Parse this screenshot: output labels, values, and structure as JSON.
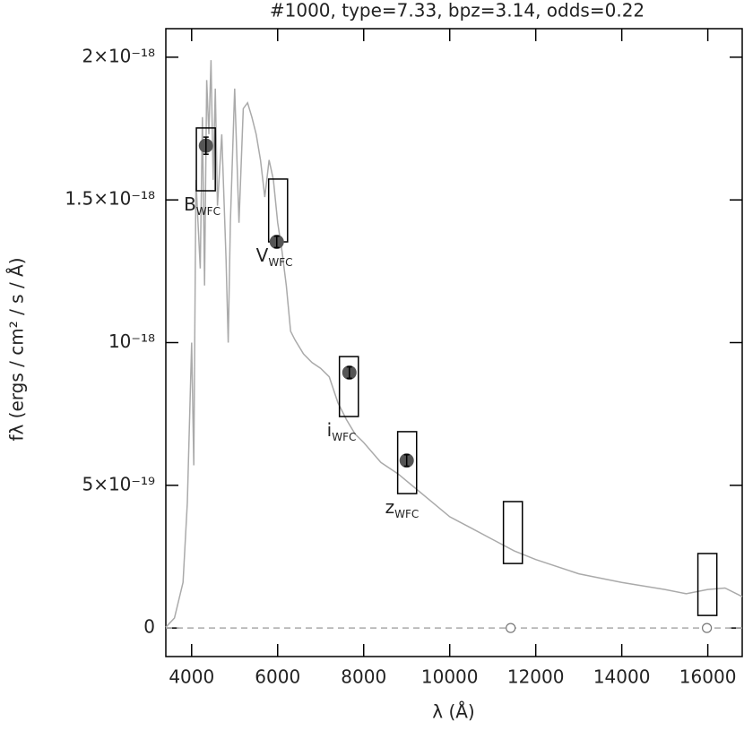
{
  "chart_data": {
    "type": "sed",
    "title": "#1000, type=7.33, bpz=3.14, odds=0.22",
    "xlabel": "λ (Å)",
    "ylabel": "fλ  (ergs / cm² / s / Å)",
    "xlim": [
      3400,
      16800
    ],
    "ylim": [
      -1e-19,
      2.1e-18
    ],
    "xticks": [
      4000,
      6000,
      8000,
      10000,
      12000,
      14000,
      16000
    ],
    "yticks": [
      0,
      {
        "value": 5e-19,
        "label": "5×10⁻¹⁹"
      },
      {
        "value": 1e-18,
        "label": "10⁻¹⁸"
      },
      {
        "value": 1.5e-18,
        "label": "1.5×10⁻¹⁸"
      },
      {
        "value": 2e-18,
        "label": "2×10⁻¹⁸"
      }
    ],
    "zero_line": true,
    "series": [
      {
        "color": "#aaaaaa",
        "x": [
          3400,
          3600,
          3800,
          3900,
          4000,
          4050,
          4100,
          4200,
          4250,
          4300,
          4350,
          4400,
          4450,
          4500,
          4550,
          4600,
          4700,
          4800,
          4850,
          4900,
          5000,
          5100,
          5200,
          5300,
          5400,
          5500,
          5600,
          5700,
          5800,
          5900,
          6000,
          6100,
          6200,
          6300,
          6400,
          6600,
          6800,
          7000,
          7200,
          7400,
          7600,
          7800,
          8000,
          8400,
          8800,
          9200,
          9600,
          10000,
          10500,
          11000,
          11500,
          12000,
          13000,
          14000,
          15000,
          15500,
          16000,
          16400,
          16800
        ],
        "values": [
          3e-21,
          3.5e-20,
          1.6e-19,
          4.4e-19,
          1e-18,
          5.7e-19,
          1.57e-18,
          1.26e-18,
          1.79e-18,
          1.2e-18,
          1.92e-18,
          1.73e-18,
          1.99e-18,
          1.57e-18,
          1.89e-18,
          1.48e-18,
          1.73e-18,
          1.29e-18,
          1e-18,
          1.42e-18,
          1.89e-18,
          1.42e-18,
          1.82e-18,
          1.84e-18,
          1.79e-18,
          1.73e-18,
          1.64e-18,
          1.51e-18,
          1.64e-18,
          1.57e-18,
          1.42e-18,
          1.32e-18,
          1.2e-18,
          1.04e-18,
          1.01e-18,
          9.6e-19,
          9.3e-19,
          9.1e-19,
          8.8e-19,
          7.9e-19,
          7.3e-19,
          6.8e-19,
          6.5e-19,
          5.8e-19,
          5.4e-19,
          4.9e-19,
          4.4e-19,
          3.9e-19,
          3.5e-19,
          3.1e-19,
          2.7e-19,
          2.4e-19,
          1.9e-19,
          1.6e-19,
          1.35e-19,
          1.2e-19,
          1.35e-19,
          1.4e-19,
          1.1e-19
        ]
      }
    ],
    "model": {
      "wavelength": [
        4330,
        6010,
        7656,
        9010,
        11469,
        15990
      ],
      "width": 440,
      "lower": [
        1.532e-18,
        1.353e-18,
        7.41e-19,
        4.71e-19,
        2.26e-19,
        4.4e-20
      ],
      "upper": [
        1.752e-18,
        1.573e-18,
        9.51e-19,
        6.88e-19,
        4.43e-19,
        2.61e-19
      ]
    },
    "photometry": {
      "wavelength": [
        4333,
        5979,
        7667,
        9000,
        11417,
        15979
      ],
      "flux": [
        1.69e-18,
        1.353e-18,
        8.95e-19,
        5.87e-19,
        0,
        0
      ],
      "error": [
        3e-20,
        2e-20,
        2e-20,
        2e-20,
        null,
        null
      ],
      "detected": [
        true,
        true,
        true,
        true,
        false,
        false
      ],
      "color": "#555555"
    },
    "filter_labels": [
      {
        "name": "B",
        "subscript": "WFC"
      },
      {
        "name": "V",
        "subscript": "WFC"
      },
      {
        "name": "i",
        "subscript": "WFC"
      },
      {
        "name": "z",
        "subscript": "WFC"
      }
    ]
  }
}
